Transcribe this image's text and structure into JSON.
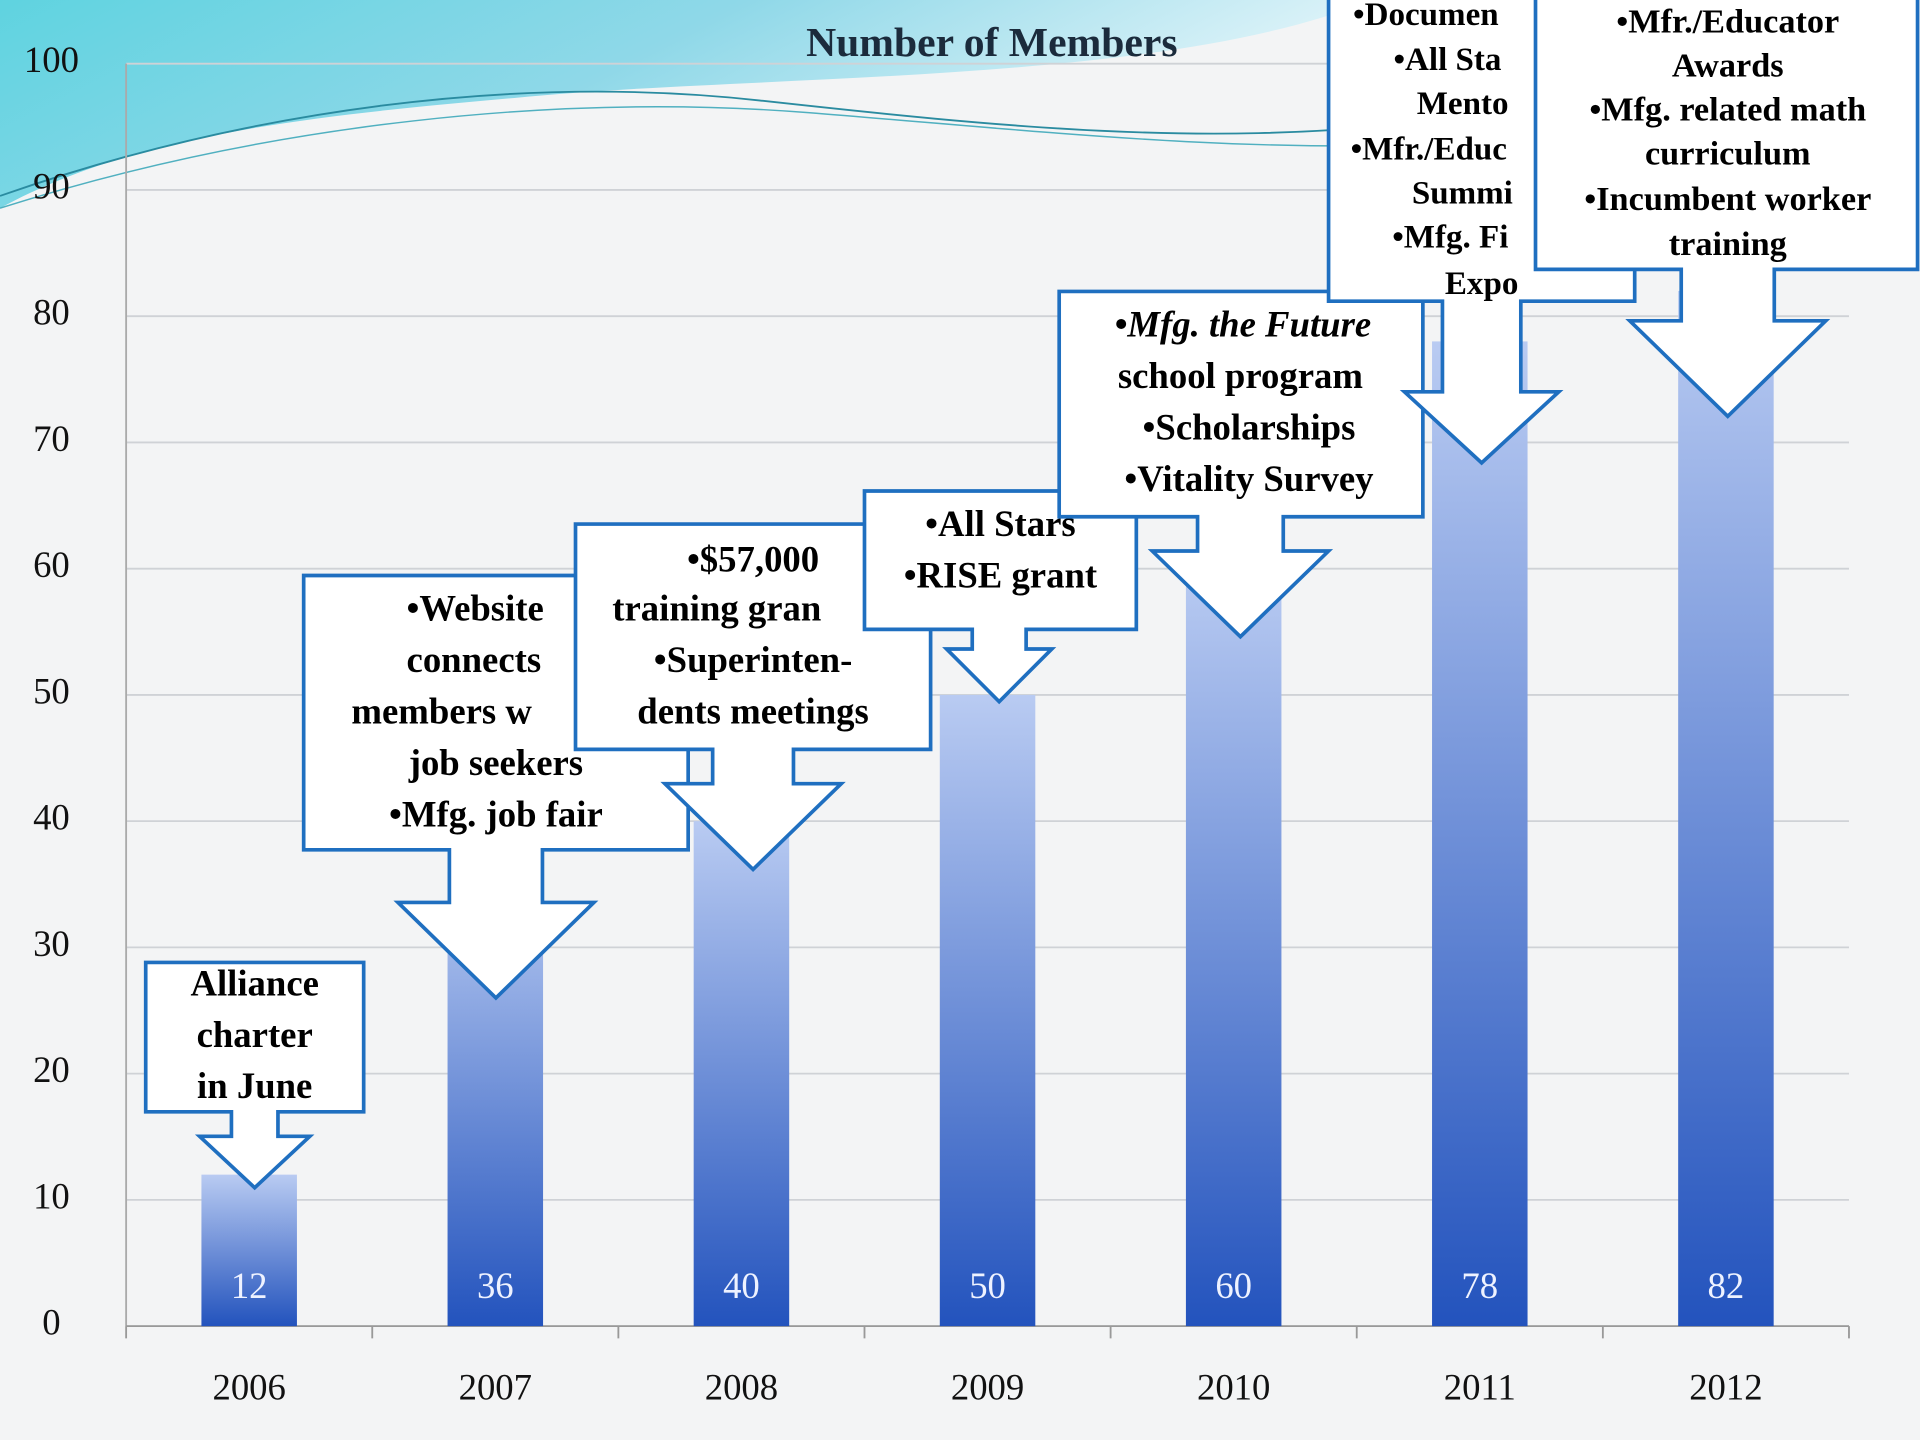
{
  "chart_data": {
    "type": "bar",
    "title": "Number of Members",
    "categories": [
      "2006",
      "2007",
      "2008",
      "2009",
      "2010",
      "2011",
      "2012"
    ],
    "values": [
      12,
      36,
      40,
      50,
      60,
      78,
      82
    ],
    "ylim": [
      0,
      100
    ],
    "yticks": [
      0,
      10,
      20,
      30,
      40,
      50,
      60,
      70,
      80,
      90,
      100
    ],
    "grid": true,
    "color": "#3d6fd0",
    "annotations": [
      [
        "Alliance",
        "charter",
        "in June"
      ],
      [
        "•Website",
        "connects",
        "members w",
        "job seekers",
        "•Mfg. job fair"
      ],
      [
        "•$57,000",
        "training gran",
        "•Superinten-",
        "dents meetings"
      ],
      [
        "•All Stars",
        "•RISE grant"
      ],
      [
        "•Mfg. the Future",
        "school program",
        "•Scholarships",
        "•Vitality Survey"
      ],
      [
        "•Documen",
        "•All Sta",
        "Mento",
        "•Mfr./Educ",
        "Summi",
        "•Mfg. Fi",
        "Expo"
      ],
      [
        "•Mfr./Educator",
        "Awards",
        "•Mfg. related math",
        "curriculum",
        "•Incumbent worker",
        "training"
      ]
    ]
  }
}
